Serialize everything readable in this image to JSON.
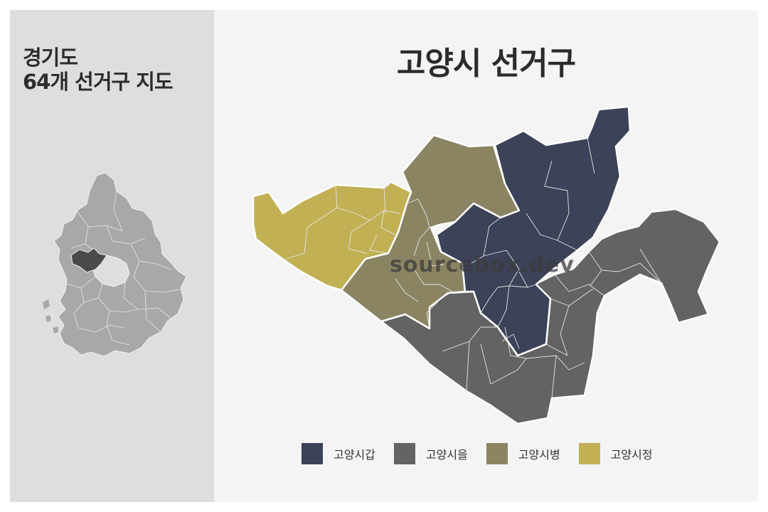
{
  "sidebar": {
    "title_line1": "경기도",
    "title_line2": "64개 선거구 지도"
  },
  "main": {
    "title": "고양시 선거구"
  },
  "watermark": "sourcebox.dev",
  "legend": [
    {
      "label": "고양시갑",
      "color": "#3c4257"
    },
    {
      "label": "고양시을",
      "color": "#636363"
    },
    {
      "label": "고양시병",
      "color": "#8b8463"
    },
    {
      "label": "고양시정",
      "color": "#c2b055"
    }
  ],
  "colors": {
    "province_fill": "#a8a8a8",
    "province_highlight": "#4a4a4a",
    "sidebar_bg": "#dedede",
    "main_bg": "#f4f4f5"
  }
}
